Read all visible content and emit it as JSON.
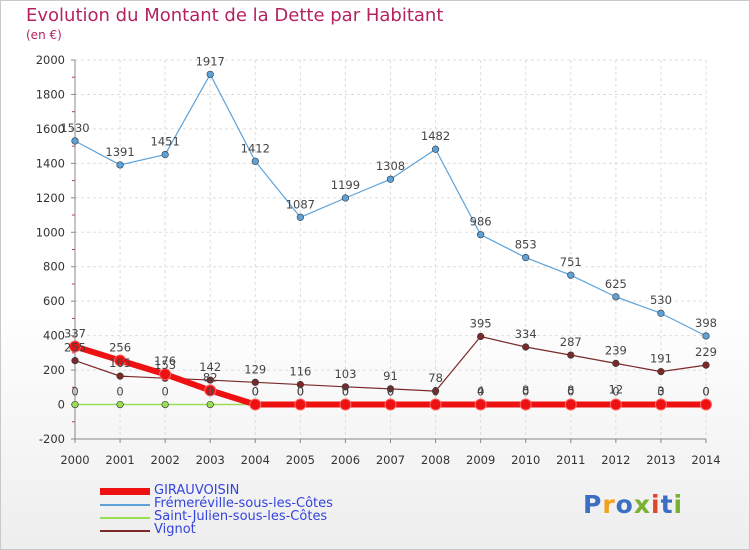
{
  "title": "Evolution du Montant de la Dette par Habitant",
  "subtitle": "(en €)",
  "logo": {
    "text": "Proxiti",
    "colors": [
      "#3a6fc4",
      "#f2a01d",
      "#3a6fc4",
      "#79b233",
      "#e2462a",
      "#3a6fc4",
      "#79b233"
    ]
  },
  "chart_data": {
    "type": "line",
    "x": [
      "2000",
      "2001",
      "2002",
      "2003",
      "2004",
      "2005",
      "2006",
      "2007",
      "2008",
      "2009",
      "2010",
      "2011",
      "2012",
      "2013",
      "2014"
    ],
    "ylim": [
      -200,
      2000
    ],
    "yticks": [
      -200,
      0,
      200,
      400,
      600,
      800,
      1000,
      1200,
      1400,
      1600,
      1800,
      2000
    ],
    "grid": true,
    "legend_position": "bottom-left",
    "series": [
      {
        "name": "GIRAUVOISIN",
        "color": "#ee1111",
        "values": [
          337,
          256,
          176,
          82,
          0,
          0,
          0,
          0,
          0,
          0,
          0,
          0,
          0,
          0,
          0
        ],
        "labels": [
          "337",
          "256",
          "176",
          "82",
          "0",
          "0",
          "0",
          "0",
          "0",
          "0",
          "0",
          "0",
          "0",
          "0",
          "0"
        ]
      },
      {
        "name": "Frémeréville-sous-les-Côtes",
        "color": "#5da2d9",
        "values": [
          1530,
          1391,
          1451,
          1917,
          1412,
          1087,
          1199,
          1308,
          1482,
          986,
          853,
          751,
          625,
          530,
          398
        ],
        "labels": [
          "1530",
          "1391",
          "1451",
          "1917",
          "1412",
          "1087",
          "1199",
          "1308",
          "1482",
          "986",
          "853",
          "751",
          "625",
          "530",
          "398"
        ]
      },
      {
        "name": "Saint-Julien-sous-les-Côtes",
        "color": "#99dd55",
        "values": [
          0,
          0,
          0,
          0,
          0,
          0,
          0,
          0,
          0,
          4,
          8,
          8,
          12,
          3,
          0
        ],
        "labels": [
          "0",
          "0",
          "0",
          "0",
          "0",
          "0",
          "0",
          "0",
          "0",
          "4",
          "8",
          "8",
          "12",
          "3",
          "0"
        ]
      },
      {
        "name": "Vignot",
        "color": "#7a2a2a",
        "values": [
          255,
          165,
          153,
          142,
          129,
          116,
          103,
          91,
          78,
          395,
          334,
          287,
          239,
          191,
          229
        ],
        "labels": [
          "255",
          "165",
          "153",
          "142",
          "129",
          "116",
          "103",
          "91",
          "78",
          "395",
          "334",
          "287",
          "239",
          "191",
          "229"
        ]
      }
    ]
  }
}
